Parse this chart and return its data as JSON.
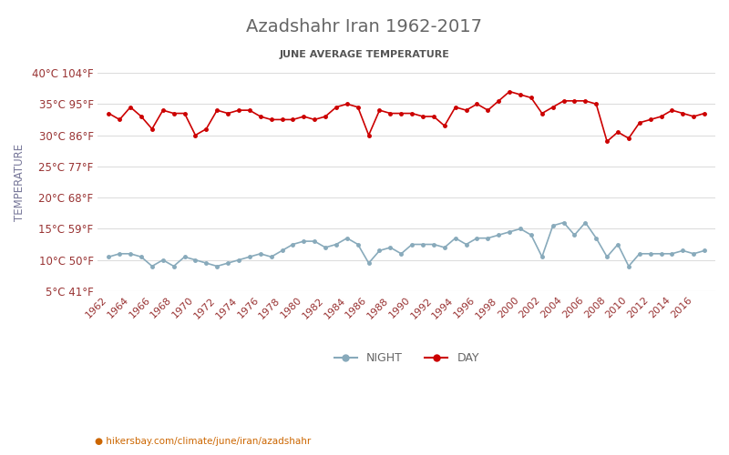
{
  "title": "Azadshahr Iran 1962-2017",
  "subtitle": "JUNE AVERAGE TEMPERATURE",
  "xlabel_url": "hikersbay.com/climate/june/iran/azadshahr",
  "ylabel": "TEMPERATURE",
  "years": [
    1962,
    1963,
    1964,
    1965,
    1966,
    1967,
    1968,
    1969,
    1970,
    1971,
    1972,
    1973,
    1974,
    1975,
    1976,
    1977,
    1978,
    1979,
    1980,
    1981,
    1982,
    1983,
    1984,
    1985,
    1986,
    1987,
    1988,
    1989,
    1990,
    1991,
    1992,
    1993,
    1994,
    1995,
    1996,
    1997,
    1998,
    1999,
    2000,
    2001,
    2002,
    2003,
    2004,
    2005,
    2006,
    2007,
    2008,
    2009,
    2010,
    2011,
    2012,
    2013,
    2014,
    2015,
    2016,
    2017
  ],
  "day_temps": [
    33.5,
    32.5,
    34.5,
    33.0,
    31.0,
    34.0,
    33.5,
    33.5,
    30.0,
    31.0,
    34.0,
    33.5,
    34.0,
    34.0,
    33.0,
    32.5,
    32.5,
    32.5,
    33.0,
    32.5,
    33.0,
    34.5,
    35.0,
    34.5,
    30.0,
    34.0,
    33.5,
    33.5,
    33.5,
    33.0,
    33.0,
    31.5,
    34.5,
    34.0,
    35.0,
    34.0,
    35.5,
    37.0,
    36.5,
    36.0,
    33.5,
    34.5,
    35.5,
    35.5,
    35.5,
    35.0,
    29.0,
    30.5,
    29.5,
    32.0,
    32.5,
    33.0,
    34.0,
    33.5,
    33.0,
    33.5
  ],
  "night_temps": [
    10.5,
    11.0,
    11.0,
    10.5,
    9.0,
    10.0,
    9.0,
    10.5,
    10.0,
    9.5,
    9.0,
    9.5,
    10.0,
    10.5,
    11.0,
    10.5,
    11.5,
    12.5,
    13.0,
    13.0,
    12.0,
    12.5,
    13.5,
    12.5,
    9.5,
    11.5,
    12.0,
    11.0,
    12.5,
    12.5,
    12.5,
    12.0,
    13.5,
    12.5,
    13.5,
    13.5,
    14.0,
    14.5,
    15.0,
    14.0,
    10.5,
    15.5,
    16.0,
    14.0,
    16.0,
    13.5,
    10.5,
    12.5,
    9.0,
    11.0,
    11.0,
    11.0,
    11.0,
    11.5,
    11.0,
    11.5
  ],
  "day_color": "#cc0000",
  "night_color": "#88aabb",
  "ylim_min": 5,
  "ylim_max": 40,
  "yticks_c": [
    5,
    10,
    15,
    20,
    25,
    30,
    35,
    40
  ],
  "yticks_f": [
    41,
    50,
    59,
    68,
    77,
    86,
    95,
    104
  ],
  "bg_color": "#ffffff",
  "grid_color": "#dddddd",
  "title_color": "#666666",
  "subtitle_color": "#555555",
  "tick_color": "#993333",
  "legend_night": "NIGHT",
  "legend_day": "DAY"
}
